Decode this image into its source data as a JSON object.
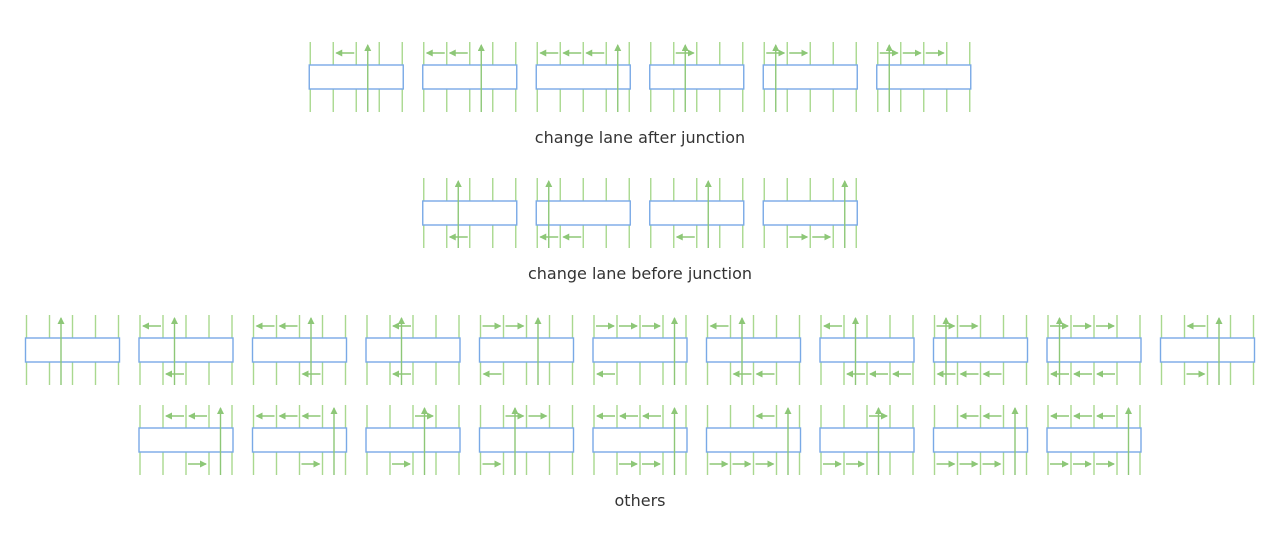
{
  "colors": {
    "box": "#79a9e6",
    "lane": "#a9d88f",
    "arrow": "#8dc777",
    "text": "#333333"
  },
  "sections": [
    {
      "caption": "change lane after junction",
      "rows": [
        [
          {
            "top": [
              {
                "from": 2,
                "to": 1,
                "dir": "left"
              }
            ],
            "vert": 2,
            "bottom": []
          },
          {
            "top": [
              {
                "from": 0,
                "to": 1,
                "dir": "left"
              },
              {
                "from": 1,
                "to": 2,
                "dir": "left"
              }
            ],
            "vert": 2,
            "bottom": []
          },
          {
            "top": [
              {
                "from": 0,
                "to": 1,
                "dir": "left"
              },
              {
                "from": 1,
                "to": 2,
                "dir": "left"
              },
              {
                "from": 2,
                "to": 3,
                "dir": "left"
              }
            ],
            "vert": 3,
            "bottom": []
          },
          {
            "top": [
              {
                "from": 1,
                "to": 2,
                "dir": "right"
              }
            ],
            "vert": 1,
            "bottom": []
          },
          {
            "top": [
              {
                "from": 0,
                "to": 1,
                "dir": "right"
              },
              {
                "from": 1,
                "to": 2,
                "dir": "right"
              }
            ],
            "vert": 0,
            "bottom": []
          },
          {
            "top": [
              {
                "from": 0,
                "to": 1,
                "dir": "right"
              },
              {
                "from": 1,
                "to": 2,
                "dir": "right"
              },
              {
                "from": 2,
                "to": 3,
                "dir": "right"
              }
            ],
            "vert": 0,
            "bottom": []
          }
        ]
      ]
    },
    {
      "caption": "change lane before junction",
      "rows": [
        [
          {
            "top": [],
            "vert": 1,
            "bottom": [
              {
                "from": 1,
                "to": 2,
                "dir": "left"
              }
            ]
          },
          {
            "top": [],
            "vert": 0,
            "bottom": [
              {
                "from": 0,
                "to": 1,
                "dir": "left"
              },
              {
                "from": 1,
                "to": 2,
                "dir": "left"
              }
            ]
          },
          {
            "top": [],
            "vert": 2,
            "bottom": [
              {
                "from": 1,
                "to": 2,
                "dir": "left"
              }
            ]
          },
          {
            "top": [],
            "vert": 3,
            "bottom": [
              {
                "from": 1,
                "to": 2,
                "dir": "right"
              },
              {
                "from": 2,
                "to": 3,
                "dir": "right"
              }
            ]
          }
        ]
      ]
    },
    {
      "caption": "others",
      "rows": [
        [
          {
            "top": [],
            "vert": 1,
            "bottom": []
          },
          {
            "top": [
              {
                "from": 0,
                "to": 1,
                "dir": "left"
              }
            ],
            "vert": 1,
            "bottom": [
              {
                "from": 1,
                "to": 2,
                "dir": "left"
              }
            ]
          },
          {
            "top": [
              {
                "from": 0,
                "to": 1,
                "dir": "left"
              },
              {
                "from": 1,
                "to": 2,
                "dir": "left"
              }
            ],
            "vert": 2,
            "bottom": [
              {
                "from": 2,
                "to": 3,
                "dir": "left"
              }
            ]
          },
          {
            "top": [
              {
                "from": 1,
                "to": 2,
                "dir": "left"
              }
            ],
            "vert": 1,
            "bottom": [
              {
                "from": 1,
                "to": 2,
                "dir": "left"
              }
            ]
          },
          {
            "top": [
              {
                "from": 0,
                "to": 1,
                "dir": "right"
              },
              {
                "from": 1,
                "to": 2,
                "dir": "right"
              }
            ],
            "vert": 2,
            "bottom": [
              {
                "from": 0,
                "to": 1,
                "dir": "left"
              }
            ]
          },
          {
            "top": [
              {
                "from": 0,
                "to": 1,
                "dir": "right"
              },
              {
                "from": 1,
                "to": 2,
                "dir": "right"
              },
              {
                "from": 2,
                "to": 3,
                "dir": "right"
              }
            ],
            "vert": 3,
            "bottom": [
              {
                "from": 0,
                "to": 1,
                "dir": "left"
              }
            ]
          },
          {
            "top": [
              {
                "from": 0,
                "to": 1,
                "dir": "left"
              }
            ],
            "vert": 1,
            "bottom": [
              {
                "from": 1,
                "to": 2,
                "dir": "left"
              },
              {
                "from": 2,
                "to": 3,
                "dir": "left"
              }
            ]
          },
          {
            "top": [
              {
                "from": 0,
                "to": 1,
                "dir": "left"
              }
            ],
            "vert": 1,
            "bottom": [
              {
                "from": 1,
                "to": 2,
                "dir": "left"
              },
              {
                "from": 2,
                "to": 3,
                "dir": "left"
              },
              {
                "from": 3,
                "to": 4,
                "dir": "left"
              }
            ]
          },
          {
            "top": [
              {
                "from": 0,
                "to": 1,
                "dir": "right"
              },
              {
                "from": 1,
                "to": 2,
                "dir": "right"
              }
            ],
            "vert": 0,
            "bottom": [
              {
                "from": 0,
                "to": 1,
                "dir": "left"
              },
              {
                "from": 1,
                "to": 2,
                "dir": "left"
              },
              {
                "from": 2,
                "to": 3,
                "dir": "left"
              }
            ]
          },
          {
            "top": [
              {
                "from": 0,
                "to": 1,
                "dir": "right"
              },
              {
                "from": 1,
                "to": 2,
                "dir": "right"
              },
              {
                "from": 2,
                "to": 3,
                "dir": "right"
              }
            ],
            "vert": 0,
            "bottom": [
              {
                "from": 0,
                "to": 1,
                "dir": "left"
              },
              {
                "from": 1,
                "to": 2,
                "dir": "left"
              },
              {
                "from": 2,
                "to": 3,
                "dir": "left"
              }
            ]
          },
          {
            "top": [
              {
                "from": 2,
                "to": 1,
                "dir": "left"
              }
            ],
            "vert": 2,
            "bottom": [
              {
                "from": 1,
                "to": 2,
                "dir": "right"
              }
            ]
          }
        ],
        [
          {
            "top": [
              {
                "from": 1,
                "to": 2,
                "dir": "left"
              },
              {
                "from": 2,
                "to": 3,
                "dir": "left"
              }
            ],
            "vert": 3,
            "bottom": [
              {
                "from": 2,
                "to": 3,
                "dir": "right"
              }
            ]
          },
          {
            "top": [
              {
                "from": 0,
                "to": 1,
                "dir": "left"
              },
              {
                "from": 1,
                "to": 2,
                "dir": "left"
              },
              {
                "from": 2,
                "to": 3,
                "dir": "left"
              }
            ],
            "vert": 3,
            "bottom": [
              {
                "from": 2,
                "to": 3,
                "dir": "right"
              }
            ]
          },
          {
            "top": [
              {
                "from": 2,
                "to": 3,
                "dir": "right"
              }
            ],
            "vert": 2,
            "bottom": [
              {
                "from": 1,
                "to": 2,
                "dir": "right"
              }
            ]
          },
          {
            "top": [
              {
                "from": 1,
                "to": 2,
                "dir": "right"
              },
              {
                "from": 2,
                "to": 3,
                "dir": "right"
              }
            ],
            "vert": 1,
            "bottom": [
              {
                "from": 0,
                "to": 1,
                "dir": "right"
              }
            ]
          },
          {
            "top": [
              {
                "from": 0,
                "to": 1,
                "dir": "left"
              },
              {
                "from": 1,
                "to": 2,
                "dir": "left"
              },
              {
                "from": 2,
                "to": 3,
                "dir": "left"
              }
            ],
            "vert": 3,
            "bottom": [
              {
                "from": 1,
                "to": 2,
                "dir": "right"
              },
              {
                "from": 2,
                "to": 3,
                "dir": "right"
              }
            ]
          },
          {
            "top": [
              {
                "from": 2,
                "to": 3,
                "dir": "left"
              }
            ],
            "vert": 3,
            "bottom": [
              {
                "from": 0,
                "to": 1,
                "dir": "right"
              },
              {
                "from": 1,
                "to": 2,
                "dir": "right"
              },
              {
                "from": 2,
                "to": 3,
                "dir": "right"
              }
            ]
          },
          {
            "top": [
              {
                "from": 2,
                "to": 3,
                "dir": "right"
              }
            ],
            "vert": 2,
            "bottom": [
              {
                "from": 0,
                "to": 1,
                "dir": "right"
              },
              {
                "from": 1,
                "to": 2,
                "dir": "right"
              }
            ]
          },
          {
            "top": [
              {
                "from": 1,
                "to": 2,
                "dir": "left"
              },
              {
                "from": 2,
                "to": 3,
                "dir": "left"
              }
            ],
            "vert": 3,
            "bottom": [
              {
                "from": 0,
                "to": 1,
                "dir": "right"
              },
              {
                "from": 1,
                "to": 2,
                "dir": "right"
              },
              {
                "from": 2,
                "to": 3,
                "dir": "right"
              }
            ]
          },
          {
            "top": [
              {
                "from": 0,
                "to": 1,
                "dir": "left"
              },
              {
                "from": 1,
                "to": 2,
                "dir": "left"
              },
              {
                "from": 2,
                "to": 3,
                "dir": "left"
              }
            ],
            "vert": 3,
            "bottom": [
              {
                "from": 0,
                "to": 1,
                "dir": "right"
              },
              {
                "from": 1,
                "to": 2,
                "dir": "right"
              },
              {
                "from": 2,
                "to": 3,
                "dir": "right"
              }
            ]
          }
        ]
      ]
    }
  ]
}
